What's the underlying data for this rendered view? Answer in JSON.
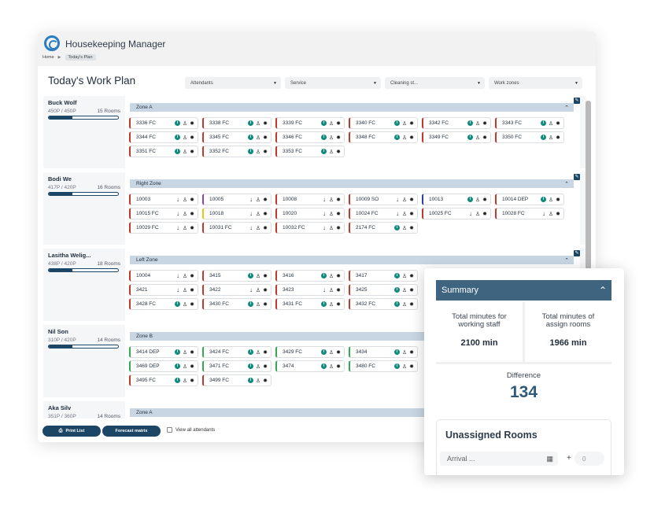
{
  "app": {
    "title": "Housekeeping Manager"
  },
  "breadcrumb": {
    "home": "Home",
    "separator": "▶",
    "current": "Today's Plan"
  },
  "page": {
    "title": "Today's Work Plan"
  },
  "filters": [
    {
      "label": "Attendants"
    },
    {
      "label": "Service"
    },
    {
      "label": "Cleaning st..."
    },
    {
      "label": "Work zones"
    }
  ],
  "icons": {
    "info": "info-icon",
    "down": "arrow-down-icon",
    "person": "person-icon",
    "gear": "gear-icon",
    "edit": "edit-icon",
    "chevron_up": "chevron-up-icon"
  },
  "colors": {
    "primary": "#1c4666",
    "zone_header": "#c8d6e4",
    "teal": "#0f8a7d",
    "red": "#c0392b",
    "green": "#34a853",
    "purple": "#8e44ad",
    "yellow": "#f1c40f",
    "blue": "#2c3ea8"
  },
  "rows": [
    {
      "name": "Buck Wolf",
      "points": "450P / 450P",
      "rooms": "15 Rooms",
      "progress": 0.34,
      "zone": "Zone A",
      "cards": [
        {
          "num": "3336 FC",
          "icon": "info",
          "color": "red"
        },
        {
          "num": "3338 FC",
          "icon": "info",
          "color": "red"
        },
        {
          "num": "3339 FC",
          "icon": "info",
          "color": "red"
        },
        {
          "num": "3340 FC",
          "icon": "info",
          "color": "red"
        },
        {
          "num": "3342 FC",
          "icon": "info",
          "color": "red"
        },
        {
          "num": "3343 FC",
          "icon": "info",
          "color": "red"
        },
        {
          "num": "3344 FC",
          "icon": "info",
          "color": "red"
        },
        {
          "num": "3345 FC",
          "icon": "info",
          "color": "red"
        },
        {
          "num": "3346 FC",
          "icon": "info",
          "color": "red"
        },
        {
          "num": "3348 FC",
          "icon": "info",
          "color": "red"
        },
        {
          "num": "3349 FC",
          "icon": "info",
          "color": "red"
        },
        {
          "num": "3350 FC",
          "icon": "info",
          "color": "red"
        },
        {
          "num": "3351 FC",
          "icon": "info",
          "color": "red"
        },
        {
          "num": "3352 FC",
          "icon": "info",
          "color": "red"
        },
        {
          "num": "3353 FC",
          "icon": "info",
          "color": "red"
        }
      ]
    },
    {
      "name": "Bodi We",
      "points": "417P / 420P",
      "rooms": "16 Rooms",
      "progress": 0.34,
      "zone": "Right Zone",
      "cards": [
        {
          "num": "10003",
          "icon": "down",
          "color": "red"
        },
        {
          "num": "10005",
          "icon": "down",
          "color": "purple"
        },
        {
          "num": "10008",
          "icon": "down",
          "color": "red"
        },
        {
          "num": "10009 SO",
          "icon": "down",
          "color": "red"
        },
        {
          "num": "10013",
          "icon": "info",
          "color": "blue"
        },
        {
          "num": "10014 DEP",
          "icon": "info",
          "color": "red"
        },
        {
          "num": "10015 FC",
          "icon": "down",
          "color": "red"
        },
        {
          "num": "10018",
          "icon": "down",
          "color": "yellow"
        },
        {
          "num": "10020",
          "icon": "down",
          "color": "red"
        },
        {
          "num": "10024 FC",
          "icon": "down",
          "color": "red"
        },
        {
          "num": "10025 FC",
          "icon": "down",
          "color": "red"
        },
        {
          "num": "10028 FC",
          "icon": "down",
          "color": "red"
        },
        {
          "num": "10029 FC",
          "icon": "down",
          "color": "red"
        },
        {
          "num": "10031 FC",
          "icon": "down",
          "color": "red"
        },
        {
          "num": "10032 FC",
          "icon": "down",
          "color": "red"
        },
        {
          "num": "2174 FC",
          "icon": "info",
          "color": "red"
        }
      ]
    },
    {
      "name": "Lasitha Welig...",
      "points": "438P / 420P",
      "rooms": "18 Rooms",
      "progress": 0.34,
      "zone": "Left Zone",
      "cards": [
        {
          "num": "10004",
          "icon": "down",
          "color": "red"
        },
        {
          "num": "3415",
          "icon": "info",
          "color": "red"
        },
        {
          "num": "3416",
          "icon": "info",
          "color": "red"
        },
        {
          "num": "3417",
          "icon": "info",
          "color": "red"
        },
        {
          "num": "3421",
          "icon": "down",
          "color": "red"
        },
        {
          "num": "3422",
          "icon": "down",
          "color": "red"
        },
        {
          "num": "3423",
          "icon": "down",
          "color": "red"
        },
        {
          "num": "3425",
          "icon": "info",
          "color": "red"
        },
        {
          "num": "3428 FC",
          "icon": "info",
          "color": "red"
        },
        {
          "num": "3430 FC",
          "icon": "info",
          "color": "red"
        },
        {
          "num": "3431 FC",
          "icon": "info",
          "color": "red"
        },
        {
          "num": "3432 FC",
          "icon": "info",
          "color": "red"
        }
      ]
    },
    {
      "name": "Nil Son",
      "points": "310P / 420P",
      "rooms": "14 Rooms",
      "progress": 0.34,
      "zone": "Zone B",
      "cards": [
        {
          "num": "3414 DEP",
          "icon": "info",
          "color": "green"
        },
        {
          "num": "3424 FC",
          "icon": "info",
          "color": "green"
        },
        {
          "num": "3429 FC",
          "icon": "info",
          "color": "green"
        },
        {
          "num": "3434",
          "icon": "info",
          "color": "green"
        },
        {
          "num": "3469 DEP",
          "icon": "info",
          "color": "green"
        },
        {
          "num": "3471 FC",
          "icon": "info",
          "color": "green"
        },
        {
          "num": "3474",
          "icon": "info",
          "color": "green"
        },
        {
          "num": "3480 FC",
          "icon": "info",
          "color": "green"
        },
        {
          "num": "3495 FC",
          "icon": "info",
          "color": "red"
        },
        {
          "num": "3499 FC",
          "icon": "info",
          "color": "red"
        }
      ]
    },
    {
      "name": "Aka Silv",
      "points": "351P / 360P",
      "rooms": "14 Rooms",
      "progress": 0.34,
      "zone": "Zone A",
      "cards": []
    }
  ],
  "footer": {
    "print": "Print List",
    "forecast": "Forecast matrix",
    "view_all": "View all attendants"
  },
  "summary": {
    "title": "Summary",
    "working_label": "Total minutes for working staff",
    "working_value": "2100 min",
    "assign_label": "Total minutes of assign rooms",
    "assign_value": "1966 min",
    "difference_label": "Difference",
    "difference_value": "134",
    "unassigned_title": "Unassigned Rooms",
    "arrival_placeholder": "Arrival ...",
    "plus": "+",
    "count": "0"
  }
}
